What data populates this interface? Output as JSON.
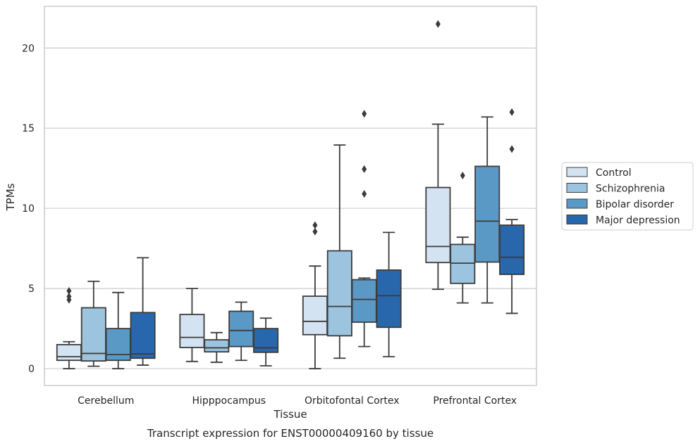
{
  "chart_data": {
    "type": "box",
    "title": "",
    "caption": "Transcript expression for ENST00000409160 by tissue",
    "xlabel": "Tissue",
    "ylabel": "TPMs",
    "ylim": [
      -1.05,
      22.6
    ],
    "yticks": [
      0,
      5,
      10,
      15,
      20
    ],
    "grid": "horizontal",
    "legend_position": "right",
    "categories": [
      "Cerebellum",
      "Hipppocampus",
      "Orbitofontal Cortex",
      "Prefrontal Cortex"
    ],
    "series": [
      {
        "name": "Control",
        "color": "#d3e3f2",
        "boxes": [
          {
            "whislo": 0.0,
            "q1": 0.52,
            "med": 0.75,
            "q3": 1.5,
            "whishi": 1.68,
            "fliers": [
              4.3,
              4.5,
              4.85
            ]
          },
          {
            "whislo": 0.45,
            "q1": 1.32,
            "med": 1.95,
            "q3": 3.38,
            "whishi": 5.0,
            "fliers": []
          },
          {
            "whislo": 0.0,
            "q1": 2.12,
            "med": 2.95,
            "q3": 4.52,
            "whishi": 6.4,
            "fliers": [
              8.55,
              8.95
            ]
          },
          {
            "whislo": 4.95,
            "q1": 6.62,
            "med": 7.62,
            "q3": 11.3,
            "whishi": 15.25,
            "fliers": [
              21.5
            ]
          }
        ]
      },
      {
        "name": "Schizophrenia",
        "color": "#9cc4df",
        "boxes": [
          {
            "whislo": 0.15,
            "q1": 0.48,
            "med": 0.95,
            "q3": 3.8,
            "whishi": 5.45,
            "fliers": []
          },
          {
            "whislo": 0.4,
            "q1": 1.05,
            "med": 1.3,
            "q3": 1.8,
            "whishi": 2.25,
            "fliers": []
          },
          {
            "whislo": 0.65,
            "q1": 2.05,
            "med": 3.88,
            "q3": 7.35,
            "whishi": 13.95,
            "fliers": []
          },
          {
            "whislo": 4.1,
            "q1": 5.32,
            "med": 6.58,
            "q3": 7.75,
            "whishi": 8.2,
            "fliers": [
              12.05
            ]
          }
        ]
      },
      {
        "name": "Bipolar disorder",
        "color": "#5a99c6",
        "boxes": [
          {
            "whislo": 0.0,
            "q1": 0.52,
            "med": 0.88,
            "q3": 2.5,
            "whishi": 4.75,
            "fliers": []
          },
          {
            "whislo": 0.52,
            "q1": 1.38,
            "med": 2.38,
            "q3": 3.58,
            "whishi": 4.15,
            "fliers": []
          },
          {
            "whislo": 1.38,
            "q1": 2.9,
            "med": 4.32,
            "q3": 5.55,
            "whishi": 5.65,
            "fliers": [
              10.9,
              12.45,
              15.9
            ]
          },
          {
            "whislo": 4.1,
            "q1": 6.65,
            "med": 9.2,
            "q3": 12.62,
            "whishi": 15.7,
            "fliers": []
          }
        ]
      },
      {
        "name": "Major depression",
        "color": "#2867ab",
        "boxes": [
          {
            "whislo": 0.22,
            "q1": 0.65,
            "med": 0.92,
            "q3": 3.5,
            "whishi": 6.92,
            "fliers": []
          },
          {
            "whislo": 0.18,
            "q1": 1.02,
            "med": 1.3,
            "q3": 2.5,
            "whishi": 3.15,
            "fliers": []
          },
          {
            "whislo": 0.75,
            "q1": 2.58,
            "med": 4.55,
            "q3": 6.15,
            "whishi": 8.5,
            "fliers": []
          },
          {
            "whislo": 3.45,
            "q1": 5.88,
            "med": 6.95,
            "q3": 8.95,
            "whishi": 9.3,
            "fliers": [
              13.7,
              16.0
            ]
          }
        ]
      }
    ]
  }
}
